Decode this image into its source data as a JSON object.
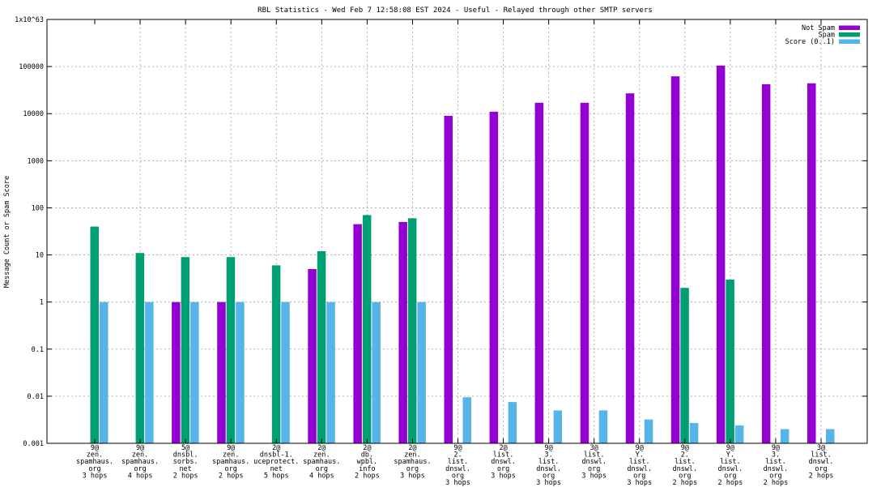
{
  "chart_data": {
    "type": "bar",
    "title": "RBL Statistics - Wed Feb  7 12:58:08 EST 2024 - Useful - Relayed through other SMTP servers",
    "ylabel": "Message Count or Spam Score",
    "xlabel": "",
    "y_scale": "log",
    "ylim": [
      0.001,
      1000000
    ],
    "y_ticks": [
      "0.001",
      "0.01",
      "0.1",
      "1",
      "10",
      "100",
      "1000",
      "10000",
      "100000",
      "1x10^63"
    ],
    "grid": true,
    "legend_position": "top-right",
    "categories": [
      [
        "9@",
        "zen.",
        "spamhaus.",
        "org",
        "3 hops"
      ],
      [
        "9@",
        "zen.",
        "spamhaus.",
        "org",
        "4 hops"
      ],
      [
        "5@",
        "dnsbl.",
        "sorbs.",
        "net",
        "2 hops"
      ],
      [
        "9@",
        "zen.",
        "spamhaus.",
        "org",
        "2 hops"
      ],
      [
        "2@",
        "dnsbl-1.",
        "uceprotect.",
        "net",
        "5 hops"
      ],
      [
        "2@",
        "zen.",
        "spamhaus.",
        "org",
        "4 hops"
      ],
      [
        "2@",
        "db.",
        "wpbl.",
        "info",
        "2 hops"
      ],
      [
        "2@",
        "zen.",
        "spamhaus.",
        "org",
        "3 hops"
      ],
      [
        "9@",
        "2.",
        "list.",
        "dnswl.",
        "org",
        "3 hops"
      ],
      [
        "2@",
        "list.",
        "dnswl.",
        "org",
        "3 hops"
      ],
      [
        "9@",
        "3.",
        "list.",
        "dnswl.",
        "org",
        "3 hops"
      ],
      [
        "3@",
        "list.",
        "dnswl.",
        "org",
        "3 hops"
      ],
      [
        "9@",
        "Y.",
        "list.",
        "dnswl.",
        "org",
        "3 hops"
      ],
      [
        "9@",
        "2.",
        "list.",
        "dnswl.",
        "org",
        "2 hops"
      ],
      [
        "9@",
        "Y.",
        "list.",
        "dnswl.",
        "org",
        "2 hops"
      ],
      [
        "9@",
        "3.",
        "list.",
        "dnswl.",
        "org",
        "2 hops"
      ],
      [
        "3@",
        "list.",
        "dnswl.",
        "org",
        "2 hops"
      ]
    ],
    "series": [
      {
        "name": "Not Spam",
        "color": "#9400d3",
        "values": [
          null,
          null,
          1,
          1,
          null,
          5,
          45,
          50,
          9000,
          11000,
          17000,
          17000,
          27000,
          62000,
          105000,
          42000,
          44000
        ]
      },
      {
        "name": "Spam",
        "color": "#009e73",
        "values": [
          40,
          11,
          9,
          9,
          6,
          12,
          70,
          60,
          null,
          null,
          null,
          null,
          null,
          2,
          3,
          null,
          null
        ]
      },
      {
        "name": "Score (0..1)",
        "color": "#56b4e9",
        "values": [
          1,
          1,
          1,
          1,
          1,
          1,
          1,
          1,
          0.0095,
          0.0075,
          0.005,
          0.005,
          0.0032,
          0.0027,
          0.0024,
          0.002,
          0.002
        ]
      }
    ]
  }
}
